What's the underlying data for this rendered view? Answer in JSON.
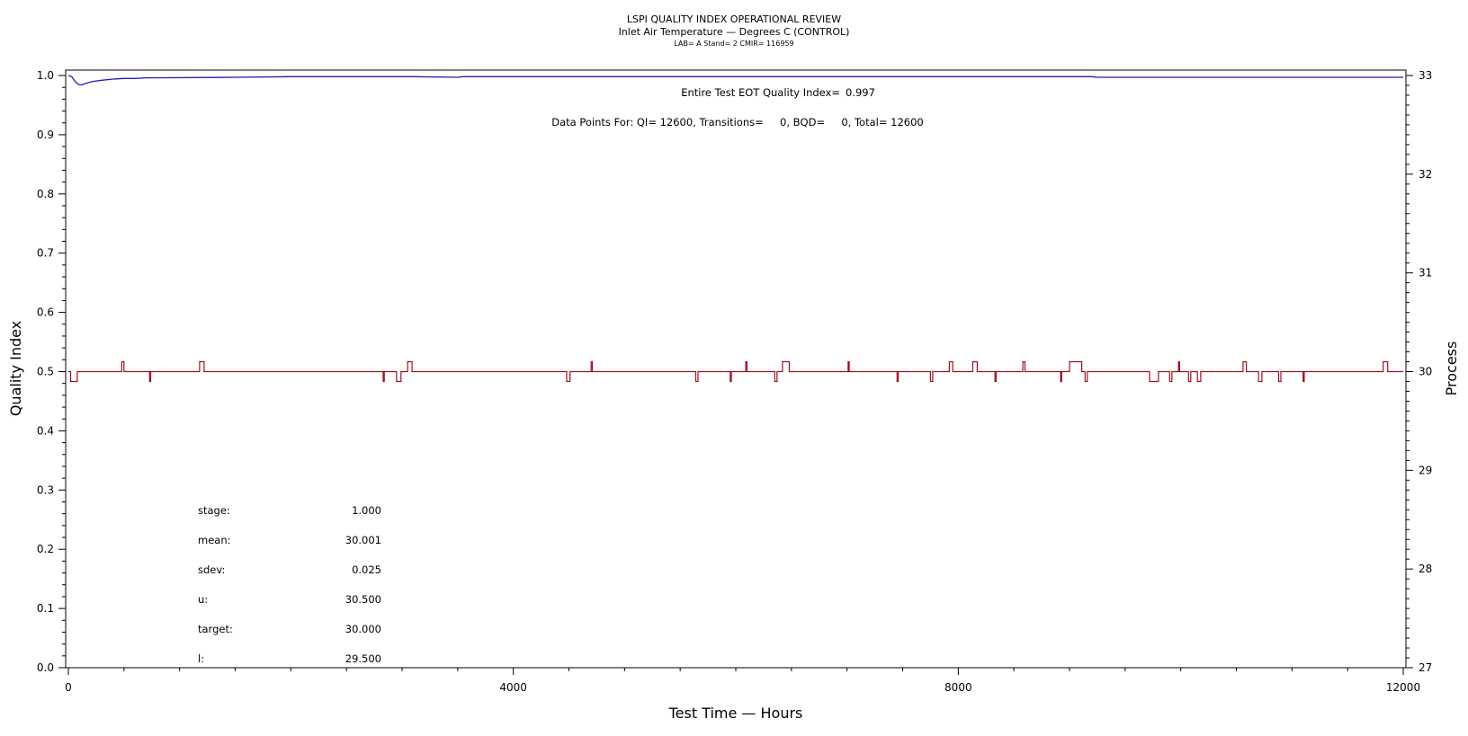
{
  "chart_data": {
    "type": "line",
    "title": "LSPI QUALITY INDEX OPERATIONAL REVIEW",
    "subtitle": "Inlet Air Temperature — Degrees C (CONTROL)",
    "subtitle2": "LAB= A Stand= 2 CMIR= 116959",
    "xlabel": "Test Time — Hours",
    "ylabel": "Quality Index",
    "y2label": "Process",
    "xlim": [
      0,
      12000
    ],
    "ylim": [
      0.0,
      1.0
    ],
    "y2lim": [
      27,
      33
    ],
    "x_ticks": [
      0,
      4000,
      8000,
      12000
    ],
    "y_ticks": [
      0.0,
      0.1,
      0.2,
      0.3,
      0.4,
      0.5,
      0.6,
      0.7,
      0.8,
      0.9,
      1.0
    ],
    "y2_ticks": [
      27,
      28,
      29,
      30,
      31,
      32,
      33
    ],
    "annotations": {
      "eot_label": "Entire Test EOT Quality Index=",
      "eot_value": "0.997",
      "data_points": "Data Points For: QI= 12600, Transitions=     0, BQD=     0, Total= 12600"
    },
    "stats": [
      {
        "label": "stage:",
        "value": "1.000"
      },
      {
        "label": "mean:",
        "value": "30.001"
      },
      {
        "label": "sdev:",
        "value": "0.025"
      },
      {
        "label": "u:",
        "value": "30.500"
      },
      {
        "label": "target:",
        "value": "30.000"
      },
      {
        "label": "l:",
        "value": "29.500"
      }
    ],
    "series": [
      {
        "role": "quality_index",
        "axis": "left",
        "color": "#1f1fa8",
        "points": [
          [
            0,
            1.0
          ],
          [
            30,
            0.998
          ],
          [
            60,
            0.99
          ],
          [
            90,
            0.985
          ],
          [
            120,
            0.984
          ],
          [
            160,
            0.987
          ],
          [
            220,
            0.99
          ],
          [
            300,
            0.992
          ],
          [
            400,
            0.994
          ],
          [
            500,
            0.995
          ],
          [
            600,
            0.995
          ],
          [
            700,
            0.996
          ],
          [
            1500,
            0.997
          ],
          [
            2000,
            0.998
          ],
          [
            3000,
            0.998
          ],
          [
            3100,
            0.998
          ],
          [
            3500,
            0.997
          ],
          [
            3550,
            0.998
          ],
          [
            9200,
            0.998
          ],
          [
            9250,
            0.997
          ],
          [
            12000,
            0.997
          ]
        ]
      },
      {
        "role": "process",
        "axis": "right",
        "color": "#a0101e",
        "baseline": 30.0,
        "excursions": [
          {
            "x": [
              20,
              80
            ],
            "y": 29.9
          },
          {
            "x": [
              480,
              500
            ],
            "y": 30.1
          },
          {
            "x": [
              730,
              740
            ],
            "y": 29.9
          },
          {
            "x": [
              1180,
              1220
            ],
            "y": 30.1
          },
          {
            "x": [
              2830,
              2840
            ],
            "y": 29.9
          },
          {
            "x": [
              2950,
              2990
            ],
            "y": 29.9
          },
          {
            "x": [
              3050,
              3090
            ],
            "y": 30.1
          },
          {
            "x": [
              4480,
              4510
            ],
            "y": 29.9
          },
          {
            "x": [
              4700,
              4710
            ],
            "y": 30.1
          },
          {
            "x": [
              5640,
              5660
            ],
            "y": 29.9
          },
          {
            "x": [
              5950,
              5960
            ],
            "y": 29.9
          },
          {
            "x": [
              6090,
              6100
            ],
            "y": 30.1
          },
          {
            "x": [
              6350,
              6370
            ],
            "y": 29.9
          },
          {
            "x": [
              6420,
              6480
            ],
            "y": 30.1
          },
          {
            "x": [
              7010,
              7020
            ],
            "y": 30.1
          },
          {
            "x": [
              7450,
              7460
            ],
            "y": 29.9
          },
          {
            "x": [
              7750,
              7770
            ],
            "y": 29.9
          },
          {
            "x": [
              7920,
              7950
            ],
            "y": 30.1
          },
          {
            "x": [
              8130,
              8170
            ],
            "y": 30.1
          },
          {
            "x": [
              8330,
              8340
            ],
            "y": 29.9
          },
          {
            "x": [
              8580,
              8600
            ],
            "y": 30.1
          },
          {
            "x": [
              8920,
              8930
            ],
            "y": 29.9
          },
          {
            "x": [
              9000,
              9110
            ],
            "y": 30.1
          },
          {
            "x": [
              9140,
              9160
            ],
            "y": 29.9
          },
          {
            "x": [
              9720,
              9800
            ],
            "y": 29.9
          },
          {
            "x": [
              9900,
              9920
            ],
            "y": 29.9
          },
          {
            "x": [
              9980,
              9990
            ],
            "y": 30.1
          },
          {
            "x": [
              10070,
              10090
            ],
            "y": 29.9
          },
          {
            "x": [
              10150,
              10180
            ],
            "y": 29.9
          },
          {
            "x": [
              10560,
              10590
            ],
            "y": 30.1
          },
          {
            "x": [
              10700,
              10730
            ],
            "y": 29.9
          },
          {
            "x": [
              10880,
              10900
            ],
            "y": 29.9
          },
          {
            "x": [
              11100,
              11110
            ],
            "y": 29.9
          },
          {
            "x": [
              11820,
              11860
            ],
            "y": 30.1
          }
        ]
      }
    ]
  }
}
